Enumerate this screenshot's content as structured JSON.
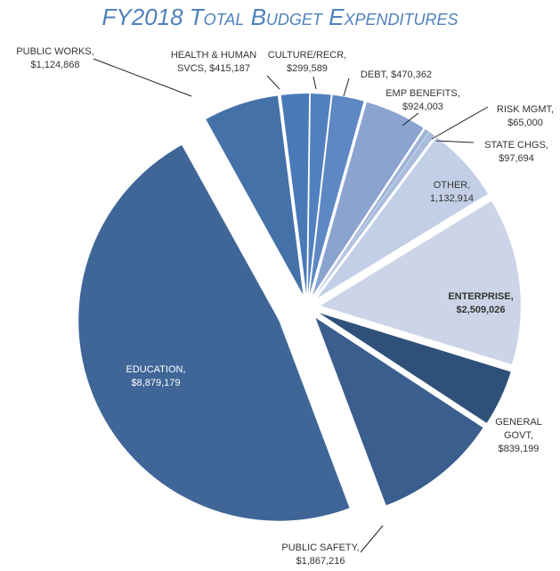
{
  "chart_data": {
    "type": "pie",
    "title": "FY2018 Total Budget Expenditures",
    "categories": [
      "PUBLIC WORKS,",
      "HEALTH & HUMAN SVCS,",
      "CULTURE/RECR,",
      "DEBT,",
      "EMP BENEFITS,",
      "RISK MGMT,",
      "STATE CHGS,",
      "OTHER,",
      "ENTERPRISE,",
      "GENERAL GOVT,",
      "PUBLIC SAFETY,",
      "EDUCATION,"
    ],
    "values": [
      1124868,
      415187,
      299589,
      470362,
      924003,
      65000,
      97694,
      1132914,
      2509026,
      839199,
      1867216,
      8879179
    ],
    "value_labels": [
      "$1,124,868",
      "$415,187",
      "$299,589",
      "$470,362",
      "$924,003",
      "$65,000",
      "$97,694",
      "1,132,914",
      "$2,509,026",
      "$839,199",
      "$1,867,216",
      "$8,879,179"
    ],
    "colors": [
      "#4472a8",
      "#4a79b8",
      "#5280bf",
      "#5d88c4",
      "#8aa3cf",
      "#9fb3d8",
      "#aabcdc",
      "#c3cfe6",
      "#ccd5e7",
      "#2f5079",
      "#3a5e8d",
      "#3f6697"
    ]
  }
}
